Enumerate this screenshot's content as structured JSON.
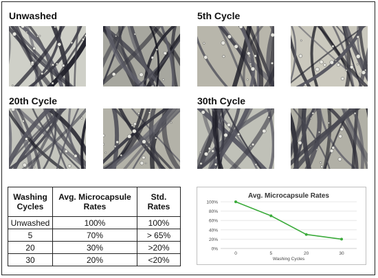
{
  "panels": [
    {
      "title": "Unwashed"
    },
    {
      "title": "5th Cycle"
    },
    {
      "title": "20th Cycle"
    },
    {
      "title": "30th Cycle"
    }
  ],
  "table": {
    "headers": [
      "Washing Cycles",
      "Avg. Microcapsule Rates",
      "Std. Rates"
    ],
    "rows": [
      [
        "Unwashed",
        "100%",
        "100%"
      ],
      [
        "5",
        "70%",
        "> 65%"
      ],
      [
        "20",
        "30%",
        ">20%"
      ],
      [
        "30",
        "20%",
        "<20%"
      ]
    ]
  },
  "chart_data": {
    "type": "line",
    "title": "Avg. Microcapsule Rates",
    "xlabel": "Washing Cycles",
    "ylabel": "",
    "x": [
      0,
      5,
      20,
      30
    ],
    "y": [
      100,
      70,
      30,
      20
    ],
    "x_ticks": [
      "0",
      "5",
      "20",
      "30"
    ],
    "y_ticks": [
      "0%",
      "20%",
      "40%",
      "60%",
      "80%",
      "100%"
    ],
    "ylim": [
      0,
      100
    ],
    "grid": true,
    "legend": "none",
    "color": "#3bab3b"
  }
}
